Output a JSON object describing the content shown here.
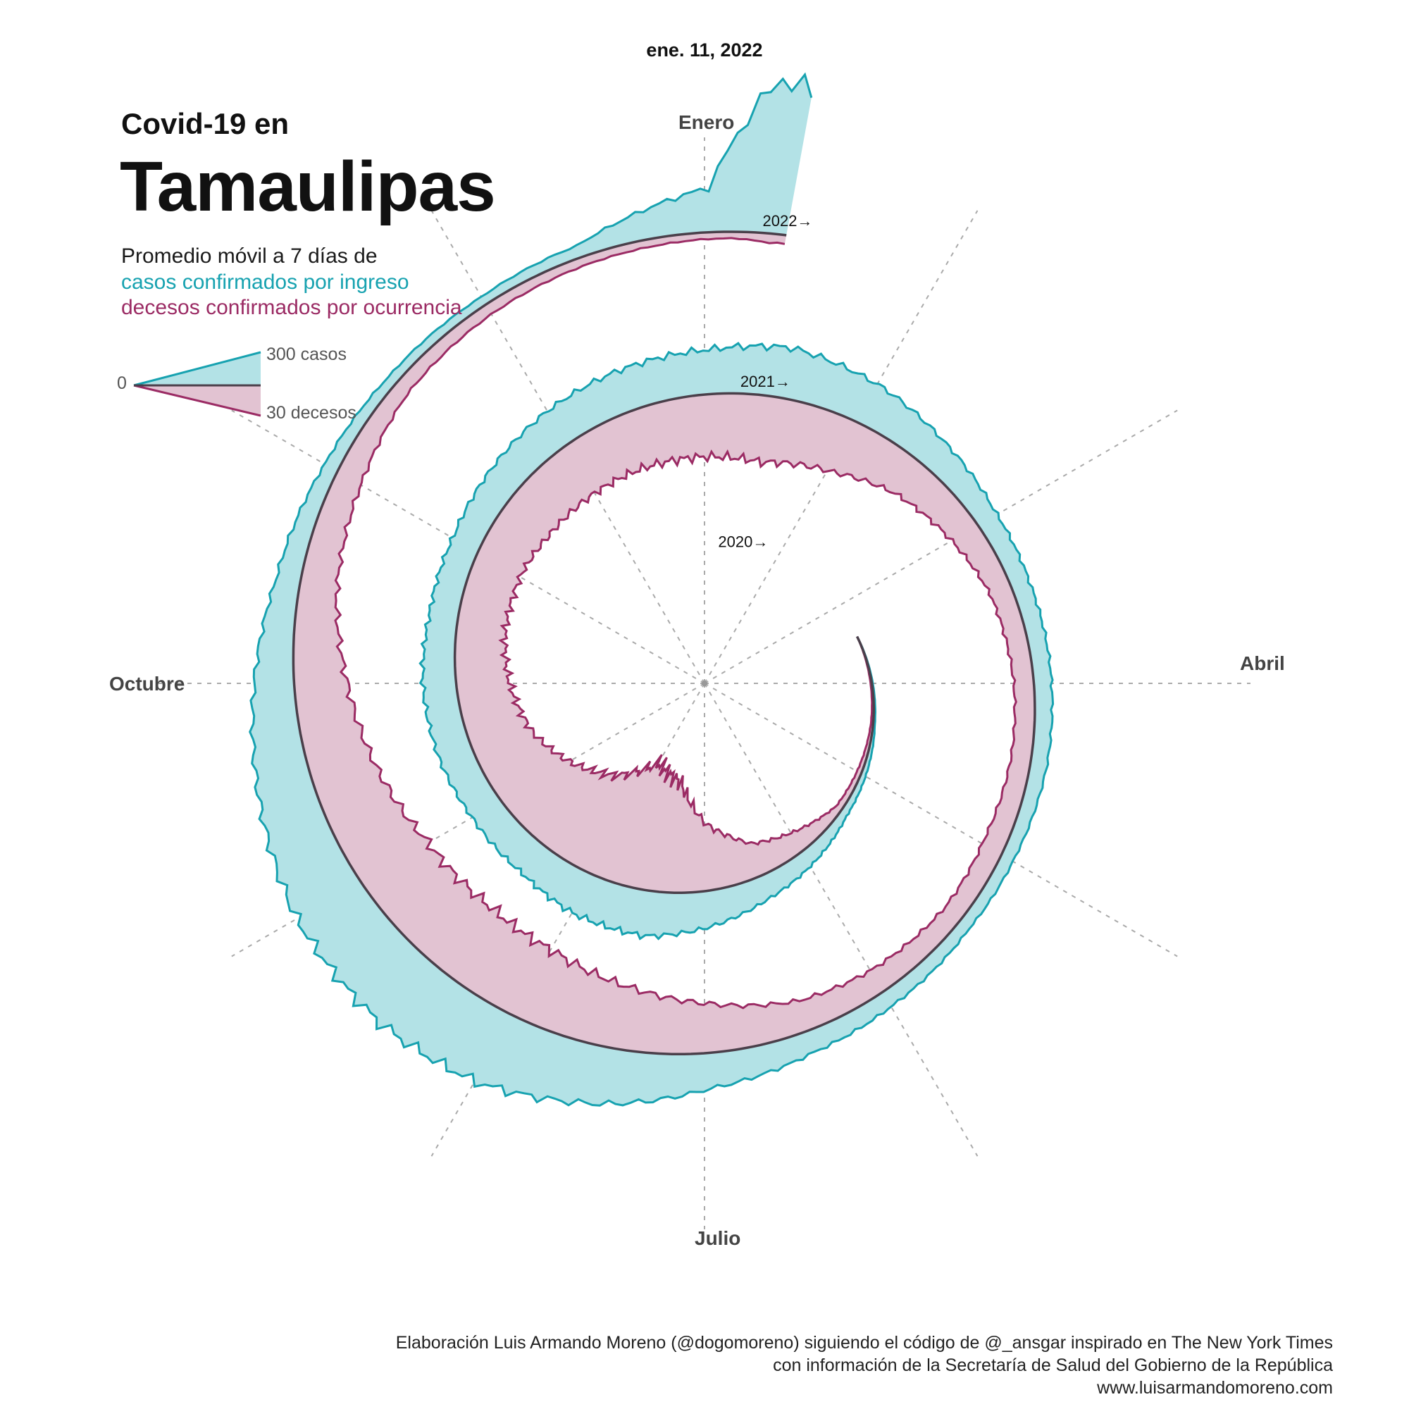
{
  "date_label": "ene. 11, 2022",
  "title_small": "Covid-19 en",
  "title_big": "Tamaulipas",
  "subtitle": "Promedio móvil a 7 días de",
  "series_label_cases": "casos confirmados por ingreso",
  "series_label_deaths": "decesos confirmados por ocurrencia",
  "months": {
    "jan": "Enero",
    "apr": "Abril",
    "jul": "Julio",
    "oct": "Octubre"
  },
  "legend": {
    "zero": "0",
    "cases": "300 casos",
    "deaths": "30 decesos"
  },
  "footer": [
    "Elaboración Luis Armando Moreno (@dogomoreno) siguiendo el código de @_ansgar inspirado en The New York Times",
    "con información de la Secretaría de Salud del Gobierno de la República",
    "www.luisarmandomoreno.com"
  ],
  "colors": {
    "cases_fill": "#b3e2e6",
    "cases_line": "#17a2b0",
    "deaths_fill": "#e2c3d2",
    "deaths_line": "#9b2b64",
    "baseline": "#4a3f4a",
    "grid": "#aaaaaa"
  },
  "chart_data": {
    "type": "area",
    "layout": "spiral",
    "direction": "clockwise",
    "scale": {
      "cases": 300,
      "deaths": 30
    },
    "year_labels": [
      "2020→",
      "2021→",
      "2022→"
    ],
    "series": [
      {
        "name": "casos confirmados por ingreso",
        "points": [
          [
            "2020-03-15",
            0
          ],
          [
            "2020-04-15",
            8
          ],
          [
            "2020-05-15",
            35
          ],
          [
            "2020-06-15",
            110
          ],
          [
            "2020-07-01",
            165
          ],
          [
            "2020-07-15",
            205
          ],
          [
            "2020-08-01",
            195
          ],
          [
            "2020-08-15",
            160
          ],
          [
            "2020-09-01",
            150
          ],
          [
            "2020-09-15",
            155
          ],
          [
            "2020-10-01",
            150
          ],
          [
            "2020-10-15",
            130
          ],
          [
            "2020-11-01",
            130
          ],
          [
            "2020-11-15",
            150
          ],
          [
            "2020-12-01",
            175
          ],
          [
            "2020-12-15",
            190
          ],
          [
            "2021-01-01",
            200
          ],
          [
            "2021-01-15",
            230
          ],
          [
            "2021-02-01",
            190
          ],
          [
            "2021-02-15",
            140
          ],
          [
            "2021-03-01",
            100
          ],
          [
            "2021-03-15",
            85
          ],
          [
            "2021-04-01",
            80
          ],
          [
            "2021-04-15",
            75
          ],
          [
            "2021-05-01",
            60
          ],
          [
            "2021-05-15",
            55
          ],
          [
            "2021-06-01",
            75
          ],
          [
            "2021-06-15",
            100
          ],
          [
            "2021-07-01",
            160
          ],
          [
            "2021-07-15",
            250
          ],
          [
            "2021-08-01",
            340
          ],
          [
            "2021-08-15",
            360
          ],
          [
            "2021-09-01",
            330
          ],
          [
            "2021-09-15",
            260
          ],
          [
            "2021-10-01",
            180
          ],
          [
            "2021-10-15",
            110
          ],
          [
            "2021-11-01",
            65
          ],
          [
            "2021-11-15",
            45
          ],
          [
            "2021-12-01",
            40
          ],
          [
            "2021-12-15",
            55
          ],
          [
            "2022-01-01",
            200
          ],
          [
            "2022-01-05",
            520
          ],
          [
            "2022-01-08",
            700
          ],
          [
            "2022-01-11",
            650
          ]
        ]
      },
      {
        "name": "decesos confirmados por ocurrencia",
        "points": [
          [
            "2020-03-15",
            0
          ],
          [
            "2020-04-15",
            1
          ],
          [
            "2020-05-15",
            3
          ],
          [
            "2020-06-15",
            15
          ],
          [
            "2020-07-01",
            30
          ],
          [
            "2020-07-15",
            50
          ],
          [
            "2020-08-01",
            58
          ],
          [
            "2020-08-15",
            45
          ],
          [
            "2020-09-01",
            35
          ],
          [
            "2020-09-15",
            28
          ],
          [
            "2020-10-01",
            24
          ],
          [
            "2020-10-15",
            22
          ],
          [
            "2020-11-01",
            22
          ],
          [
            "2020-11-15",
            24
          ],
          [
            "2020-12-01",
            25
          ],
          [
            "2020-12-15",
            26
          ],
          [
            "2021-01-01",
            28
          ],
          [
            "2021-01-15",
            30
          ],
          [
            "2021-02-01",
            25
          ],
          [
            "2021-02-15",
            18
          ],
          [
            "2021-03-01",
            14
          ],
          [
            "2021-03-15",
            10
          ],
          [
            "2021-04-01",
            9
          ],
          [
            "2021-04-15",
            9
          ],
          [
            "2021-05-01",
            10
          ],
          [
            "2021-05-15",
            9
          ],
          [
            "2021-06-01",
            11
          ],
          [
            "2021-06-15",
            14
          ],
          [
            "2021-07-01",
            22
          ],
          [
            "2021-07-15",
            28
          ],
          [
            "2021-08-01",
            34
          ],
          [
            "2021-08-15",
            36
          ],
          [
            "2021-09-01",
            35
          ],
          [
            "2021-09-15",
            30
          ],
          [
            "2021-10-01",
            24
          ],
          [
            "2021-10-15",
            17
          ],
          [
            "2021-11-01",
            12
          ],
          [
            "2021-11-15",
            7
          ],
          [
            "2021-12-01",
            5
          ],
          [
            "2021-12-15",
            4
          ],
          [
            "2022-01-01",
            3
          ],
          [
            "2022-01-05",
            3
          ],
          [
            "2022-01-08",
            4
          ],
          [
            "2022-01-11",
            4
          ]
        ]
      }
    ]
  }
}
